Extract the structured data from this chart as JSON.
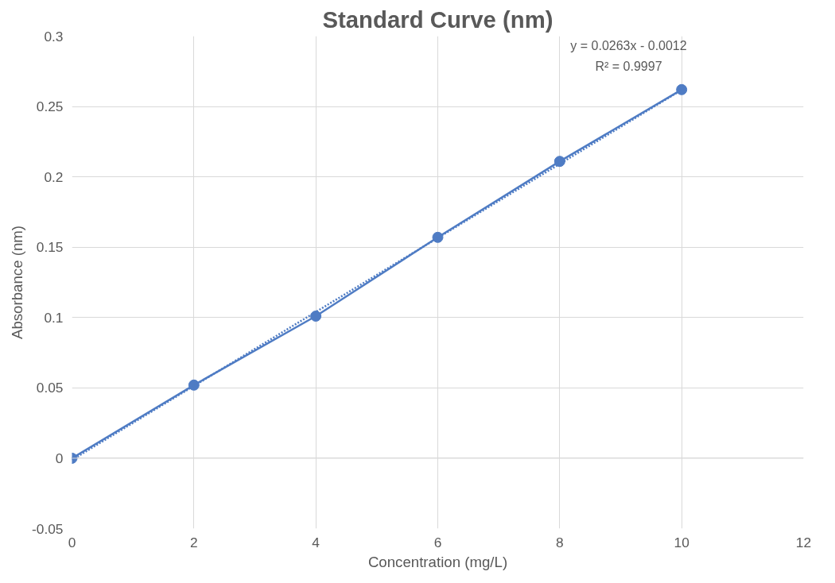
{
  "chart_data": {
    "type": "line",
    "title": "Standard Curve (nm)",
    "xlabel": "Concentration (mg/L)",
    "ylabel": "Absorbance (nm)",
    "x": [
      0,
      2,
      4,
      6,
      8,
      10
    ],
    "series": [
      {
        "color": "#4f7cc4",
        "values": [
          0,
          0.052,
          0.101,
          0.157,
          0.211,
          0.262
        ],
        "marker": "circle",
        "line_style": "solid"
      },
      {
        "type": "line",
        "color": "#4f7cc4",
        "x": [
          0,
          10
        ],
        "values": [
          -0.0012,
          0.2618
        ],
        "marker": "none",
        "line_style": "dotted"
      }
    ],
    "annotations": [
      "y = 0.0263x - 0.0012",
      "R² = 0.9997"
    ],
    "xlim": [
      0,
      12
    ],
    "xticks": [
      0,
      2,
      4,
      6,
      8,
      10,
      12
    ],
    "ylim": [
      -0.05,
      0.3
    ],
    "yticks": [
      -0.05,
      0,
      0.05,
      0.1,
      0.15,
      0.2,
      0.25,
      0.3
    ],
    "grid": true
  }
}
